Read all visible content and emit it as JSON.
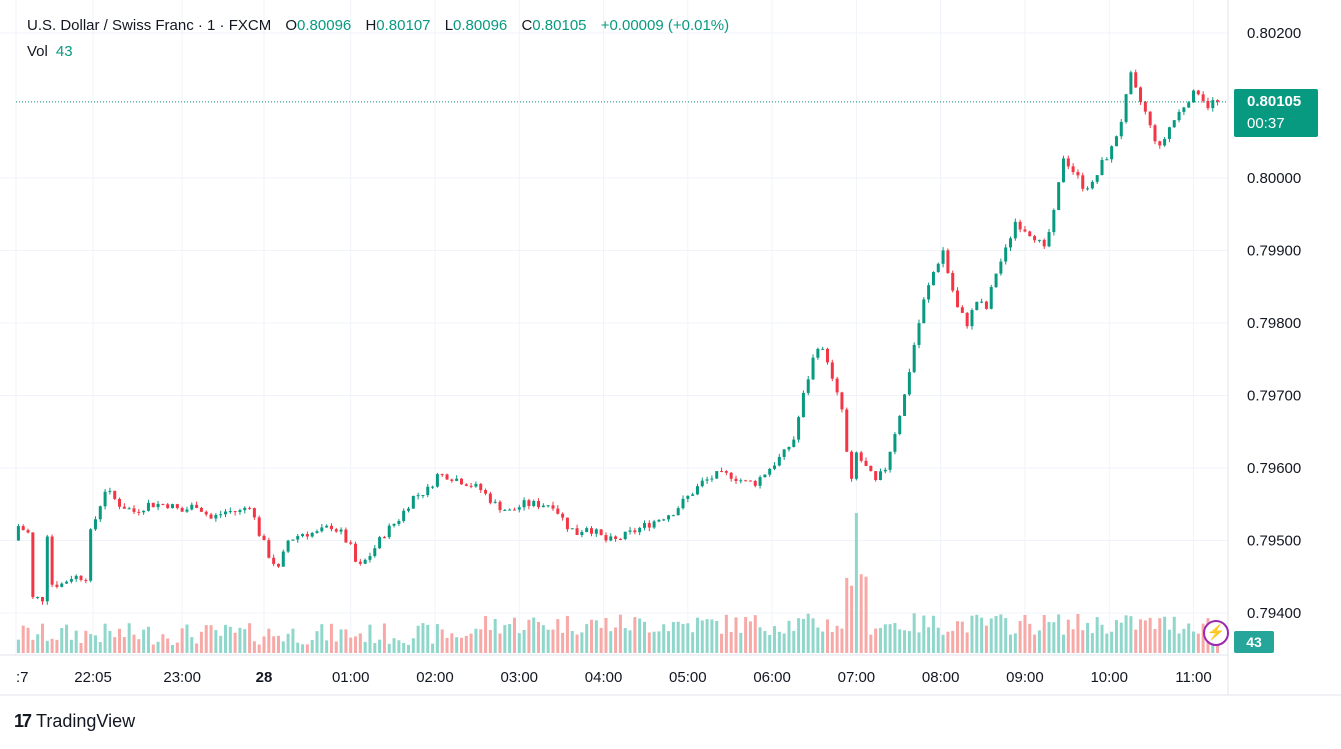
{
  "legend": {
    "symbol": "U.S. Dollar / Swiss Franc · 1 · FXCM",
    "open_label": "O",
    "open": "0.80096",
    "high_label": "H",
    "high": "0.80107",
    "low_label": "L",
    "low": "0.80096",
    "close_label": "C",
    "close": "0.80105",
    "change": "+0.00009 (+0.01%)",
    "vol_label": "Vol",
    "vol": "43"
  },
  "price_tag": {
    "price": "0.80105",
    "countdown": "00:37"
  },
  "vol_tag": "43",
  "brand": {
    "logo": "17",
    "name": "TradingView"
  },
  "colors": {
    "up": "#089981",
    "down": "#f23645",
    "vol_up": "#8fd6cb",
    "vol_down": "#f7a9a7",
    "grid": "#f0f3fa"
  },
  "chart_data": {
    "type": "candlestick",
    "title": "U.S. Dollar / Swiss Franc · 1 · FXCM",
    "ylim": [
      0.7935,
      0.802
    ],
    "y_ticks": [
      "0.80200",
      "0.80000",
      "0.79900",
      "0.79800",
      "0.79700",
      "0.79600",
      "0.79500",
      "0.79400"
    ],
    "y_tick_values": [
      0.802,
      0.8,
      0.799,
      0.798,
      0.797,
      0.796,
      0.795,
      0.794
    ],
    "x_ticks": [
      {
        "label": ":7",
        "x": 0,
        "bold": false
      },
      {
        "label": "22:05",
        "x": 16,
        "bold": false
      },
      {
        "label": "23:00",
        "x": 34.5,
        "bold": false
      },
      {
        "label": "28",
        "x": 51.5,
        "bold": true
      },
      {
        "label": "01:00",
        "x": 69.5,
        "bold": false
      },
      {
        "label": "02:00",
        "x": 87,
        "bold": false
      },
      {
        "label": "03:00",
        "x": 104.5,
        "bold": false
      },
      {
        "label": "04:00",
        "x": 122,
        "bold": false
      },
      {
        "label": "05:00",
        "x": 139.5,
        "bold": false
      },
      {
        "label": "06:00",
        "x": 157,
        "bold": false
      },
      {
        "label": "07:00",
        "x": 174.5,
        "bold": false
      },
      {
        "label": "08:00",
        "x": 192,
        "bold": false
      },
      {
        "label": "09:00",
        "x": 209.5,
        "bold": false
      },
      {
        "label": "10:00",
        "x": 227,
        "bold": false
      },
      {
        "label": "11:00",
        "x": 244.5,
        "bold": false
      }
    ],
    "last_price": 0.80105,
    "path": [
      [
        0,
        0.795
      ],
      [
        1,
        0.7952
      ],
      [
        3,
        0.7951
      ],
      [
        4,
        0.7942
      ],
      [
        6,
        0.7942
      ],
      [
        7,
        0.7951
      ],
      [
        8,
        0.7944
      ],
      [
        10,
        0.7944
      ],
      [
        12,
        0.7945
      ],
      [
        15,
        0.7945
      ],
      [
        16,
        0.7951
      ],
      [
        18,
        0.7955
      ],
      [
        19,
        0.7957
      ],
      [
        22,
        0.7955
      ],
      [
        25,
        0.7954
      ],
      [
        28,
        0.7955
      ],
      [
        32,
        0.7955
      ],
      [
        35,
        0.7954
      ],
      [
        38,
        0.7955
      ],
      [
        41,
        0.7953
      ],
      [
        44,
        0.7954
      ],
      [
        47,
        0.7954
      ],
      [
        49,
        0.7955
      ],
      [
        51,
        0.7951
      ],
      [
        53,
        0.7948
      ],
      [
        55,
        0.7946
      ],
      [
        57,
        0.795
      ],
      [
        60,
        0.7951
      ],
      [
        63,
        0.7951
      ],
      [
        66,
        0.7952
      ],
      [
        68,
        0.7951
      ],
      [
        70,
        0.7949
      ],
      [
        71.5,
        0.7946
      ],
      [
        74,
        0.7948
      ],
      [
        77,
        0.7951
      ],
      [
        80,
        0.7953
      ],
      [
        83,
        0.7956
      ],
      [
        86,
        0.7957
      ],
      [
        88,
        0.7959
      ],
      [
        90,
        0.7959
      ],
      [
        94,
        0.7958
      ],
      [
        97,
        0.7957
      ],
      [
        100,
        0.7955
      ],
      [
        103,
        0.7954
      ],
      [
        106,
        0.7955
      ],
      [
        109,
        0.7955
      ],
      [
        112,
        0.7955
      ],
      [
        115,
        0.7952
      ],
      [
        117,
        0.7951
      ],
      [
        119,
        0.7952
      ],
      [
        121,
        0.7951
      ],
      [
        123,
        0.795
      ],
      [
        125,
        0.795
      ],
      [
        128,
        0.7951
      ],
      [
        131,
        0.7952
      ],
      [
        134,
        0.7953
      ],
      [
        137,
        0.7954
      ],
      [
        140,
        0.7956
      ],
      [
        143,
        0.7958
      ],
      [
        146,
        0.7959
      ],
      [
        149,
        0.7959
      ],
      [
        152,
        0.7958
      ],
      [
        154,
        0.7958
      ],
      [
        157,
        0.796
      ],
      [
        160,
        0.7962
      ],
      [
        162,
        0.7964
      ],
      [
        164,
        0.797
      ],
      [
        166,
        0.7975
      ],
      [
        167,
        0.7977
      ],
      [
        169,
        0.7975
      ],
      [
        170,
        0.7972
      ],
      [
        172,
        0.7968
      ],
      [
        173,
        0.7962
      ],
      [
        174,
        0.7958
      ],
      [
        175,
        0.7962
      ],
      [
        177,
        0.796
      ],
      [
        179,
        0.7958
      ],
      [
        181,
        0.796
      ],
      [
        183,
        0.7965
      ],
      [
        185,
        0.797
      ],
      [
        187,
        0.7977
      ],
      [
        189,
        0.7983
      ],
      [
        191,
        0.7987
      ],
      [
        193,
        0.799
      ],
      [
        194,
        0.7987
      ],
      [
        196,
        0.7982
      ],
      [
        198,
        0.798
      ],
      [
        200,
        0.7983
      ],
      [
        202,
        0.7982
      ],
      [
        204,
        0.7987
      ],
      [
        206,
        0.799
      ],
      [
        208,
        0.7994
      ],
      [
        210,
        0.7993
      ],
      [
        212,
        0.7992
      ],
      [
        214,
        0.799
      ],
      [
        216,
        0.7995
      ],
      [
        218,
        0.8003
      ],
      [
        220,
        0.8001
      ],
      [
        222,
        0.7999
      ],
      [
        224,
        0.7999
      ],
      [
        226,
        0.8002
      ],
      [
        228,
        0.8004
      ],
      [
        230,
        0.8008
      ],
      [
        231,
        0.8011
      ],
      [
        232,
        0.8014
      ],
      [
        233,
        0.8012
      ],
      [
        235,
        0.8009
      ],
      [
        236,
        0.8007
      ],
      [
        238,
        0.8004
      ],
      [
        240,
        0.8007
      ],
      [
        242,
        0.8009
      ],
      [
        244,
        0.8011
      ],
      [
        246,
        0.8012
      ],
      [
        248,
        0.801
      ],
      [
        249,
        0.80105
      ]
    ]
  }
}
